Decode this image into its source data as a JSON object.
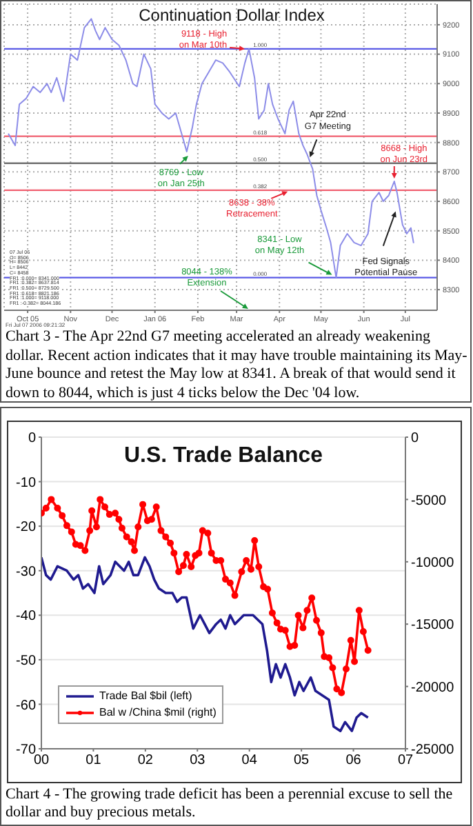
{
  "chart_data": [
    {
      "type": "line",
      "title": "Continuation Dollar Index",
      "x": [
        "2005-09-17",
        "2005-09-22",
        "2005-09-25",
        "2005-09-30",
        "2005-10-05",
        "2005-10-10",
        "2005-10-15",
        "2005-10-18",
        "2005-10-22",
        "2005-10-27",
        "2005-11-01",
        "2005-11-06",
        "2005-11-11",
        "2005-11-16",
        "2005-11-19",
        "2005-11-22",
        "2005-11-26",
        "2005-12-01",
        "2005-12-06",
        "2005-12-11",
        "2005-12-16",
        "2005-12-19",
        "2005-12-24",
        "2005-12-29",
        "2006-01-01",
        "2006-01-06",
        "2006-01-11",
        "2006-01-16",
        "2006-01-24",
        "2006-01-28",
        "2006-01-31",
        "2006-02-04",
        "2006-02-09",
        "2006-02-14",
        "2006-02-19",
        "2006-02-24",
        "2006-03-03",
        "2006-03-07",
        "2006-03-10",
        "2006-03-14",
        "2006-03-17",
        "2006-03-21",
        "2006-03-24",
        "2006-03-27",
        "2006-03-31",
        "2006-04-05",
        "2006-04-08",
        "2006-04-11",
        "2006-04-15",
        "2006-04-18",
        "2006-04-21",
        "2006-04-25",
        "2006-04-28",
        "2006-05-01",
        "2006-05-05",
        "2006-05-08",
        "2006-05-12",
        "2006-05-15",
        "2006-05-20",
        "2006-05-25",
        "2006-05-30",
        "2006-06-04",
        "2006-06-07",
        "2006-06-12",
        "2006-06-15",
        "2006-06-19",
        "2006-06-23",
        "2006-06-25",
        "2006-06-29",
        "2006-07-02",
        "2006-07-05",
        "2006-07-07"
      ],
      "series": [
        {
          "color": "#8c8ce8",
          "values": [
            8830,
            8790,
            8930,
            8950,
            8990,
            8970,
            9000,
            8970,
            9020,
            8940,
            9100,
            9080,
            9190,
            9220,
            9180,
            9150,
            9190,
            9150,
            9130,
            9080,
            9000,
            8990,
            9100,
            9050,
            8930,
            8900,
            8880,
            8900,
            8769,
            8850,
            8930,
            9000,
            9040,
            9080,
            9070,
            9040,
            8990,
            9070,
            9118,
            9020,
            8880,
            8910,
            9000,
            8930,
            8880,
            8830,
            8910,
            8940,
            8830,
            8790,
            8760,
            8710,
            8620,
            8570,
            8510,
            8460,
            8341,
            8450,
            8490,
            8460,
            8450,
            8490,
            8600,
            8630,
            8600,
            8620,
            8668,
            8630,
            8520,
            8490,
            8510,
            8458
          ]
        }
      ],
      "xlim": [
        "2005-09-14",
        "2006-07-24"
      ],
      "xticks": [
        {
          "value": "2005-10-01",
          "label": "Oct 05"
        },
        {
          "value": "2005-11-01",
          "label": "Nov"
        },
        {
          "value": "2005-12-01",
          "label": "Dec"
        },
        {
          "value": "2006-01-01",
          "label": "Jan 06"
        },
        {
          "value": "2006-02-01",
          "label": "Feb"
        },
        {
          "value": "2006-03-01",
          "label": "Mar"
        },
        {
          "value": "2006-04-01",
          "label": "Apr"
        },
        {
          "value": "2006-05-01",
          "label": "May"
        },
        {
          "value": "2006-06-01",
          "label": "Jun"
        },
        {
          "value": "2006-07-01",
          "label": "Jul"
        }
      ],
      "ylim": [
        8230,
        9270
      ],
      "yticks": [
        8300,
        8400,
        8500,
        8600,
        8700,
        8800,
        8900,
        9000,
        9100,
        9200
      ],
      "grid": true,
      "legend": false,
      "marker": "none",
      "line_style": "solid",
      "ref_lines": [
        {
          "axis": "y",
          "value": 9118,
          "color": "#5a5ae6"
        },
        {
          "axis": "y",
          "value": 8821.186,
          "color": "#f06070"
        },
        {
          "axis": "y",
          "value": 8729.5,
          "color": "#707070"
        },
        {
          "axis": "y",
          "value": 8637.814,
          "color": "#f06070"
        },
        {
          "axis": "y",
          "value": 8341,
          "color": "#5a5ae6"
        }
      ],
      "annotations": [
        {
          "text": "9118 - High on Mar 10th",
          "x": "2006-03-10",
          "y": 9118
        },
        {
          "text": "8769 - Low on Jan 25th",
          "x": "2006-01-25",
          "y": 8769
        },
        {
          "text": "Apr 22nd G7 Meeting",
          "x": "2006-04-22",
          "y": 8740
        },
        {
          "text": "8668 - High on Jun 23rd",
          "x": "2006-06-23",
          "y": 8668
        },
        {
          "text": "8638 - 38% Retracement",
          "x": "2006-04-09",
          "y": 8638
        },
        {
          "text": "8341 - Low on May 12th",
          "x": "2006-05-12",
          "y": 8341
        },
        {
          "text": "Fed Signals Potential Pause",
          "x": "2006-06-25",
          "y": 8580
        },
        "8044 - 138% Extension",
        "07 Jul 06",
        "O= 8506",
        "H= 8506",
        "L= 8442",
        "C= 8458",
        "FR1 :0.000= 8341.000",
        "FR1 :0.382= 8637.814",
        "FR1 :0.500= 8729.500",
        "FR1 :0.618= 8821.186",
        "FR1 :1.000= 9118.000",
        "FR1 :-0.382= 8044.186",
        "Fri Jul 07 2006 09:21:32",
        "Chart 3 - The Apr 22nd G7 meeting accelerated an already weakening dollar.  Recent action indicates that it may have trouble maintaining its May-June bounce and retest the May low at 8341.  A break of that would send it down to 8044, which is just 4 ticks below the Dec '04 low.",
        {
          "text": "1.000",
          "x": "2006-03-13",
          "y": 9118
        },
        {
          "text": "0.618",
          "x": "2006-03-13",
          "y": 8821.186
        },
        {
          "text": "0.500",
          "x": "2006-03-13",
          "y": 8729.5
        },
        {
          "text": "0.382",
          "x": "2006-03-13",
          "y": 8637.814
        },
        {
          "text": "0.000",
          "x": "2006-03-13",
          "y": 8341
        }
      ]
    },
    {
      "type": "line",
      "title": "U.S. Trade Balance",
      "series": [
        {
          "name": "Trade Bal $bil (left)",
          "color": "#1f1a8f",
          "marker": "none",
          "x": [
            2000,
            2000.09,
            2000.18,
            2000.31,
            2000.49,
            2000.62,
            2000.71,
            2000.8,
            2000.9,
            2001.02,
            2001.11,
            2001.19,
            2001.33,
            2001.42,
            2001.59,
            2001.68,
            2001.77,
            2001.86,
            2001.99,
            2002.08,
            2002.17,
            2002.26,
            2002.39,
            2002.52,
            2002.61,
            2002.7,
            2002.79,
            2002.92,
            2003.05,
            2003.14,
            2003.23,
            2003.36,
            2003.45,
            2003.54,
            2003.63,
            2003.72,
            2003.89,
            2004.07,
            2004.25,
            2004.34,
            2004.42,
            2004.51,
            2004.6,
            2004.69,
            2004.78,
            2004.87,
            2004.96,
            2005.04,
            2005.18,
            2005.27,
            2005.4,
            2005.53,
            2005.62,
            2005.75,
            2005.84,
            2005.97,
            2006.06,
            2006.15,
            2006.28
          ],
          "values": [
            -27,
            -31,
            -32,
            -29,
            -30,
            -32,
            -31,
            -34,
            -33,
            -35,
            -29,
            -33,
            -31,
            -28,
            -30,
            -28,
            -31,
            -31,
            -27,
            -29,
            -32,
            -34,
            -35,
            -35,
            -37,
            -36,
            -36,
            -43,
            -40,
            -42,
            -44,
            -42,
            -41,
            -43,
            -40,
            -42,
            -40,
            -40,
            -42,
            -48,
            -55,
            -51,
            -54,
            -51,
            -54,
            -58,
            -55,
            -57,
            -54,
            -57,
            -58,
            -59,
            -65,
            -66,
            -64,
            -66,
            -63,
            -62,
            -63
          ]
        },
        {
          "name": "Bal w /China $mil (right)",
          "color": "#ff0000",
          "marker": "circle",
          "axis": "y2",
          "x": [
            2000,
            2000.09,
            2000.19,
            2000.31,
            2000.4,
            2000.49,
            2000.58,
            2000.66,
            2000.75,
            2000.84,
            2000.93,
            2000.97,
            2001.06,
            2001.13,
            2001.22,
            2001.31,
            2001.42,
            2001.49,
            2001.55,
            2001.64,
            2001.73,
            2001.79,
            2001.86,
            2001.95,
            2002.04,
            2002.12,
            2002.21,
            2002.3,
            2002.39,
            2002.48,
            2002.55,
            2002.64,
            2002.73,
            2002.79,
            2002.88,
            2002.96,
            2003.03,
            2003.1,
            2003.2,
            2003.27,
            2003.36,
            2003.45,
            2003.54,
            2003.63,
            2003.72,
            2003.85,
            2003.94,
            2004.03,
            2004.1,
            2004.18,
            2004.27,
            2004.35,
            2004.44,
            2004.53,
            2004.6,
            2004.69,
            2004.78,
            2004.87,
            2004.94,
            2005.03,
            2005.11,
            2005.2,
            2005.29,
            2005.38,
            2005.44,
            2005.53,
            2005.6,
            2005.68,
            2005.77,
            2005.86,
            2005.95,
            2006.02,
            2006.11,
            2006.19,
            2006.28
          ],
          "values": [
            -6100,
            -5700,
            -5000,
            -5700,
            -6300,
            -7100,
            -7600,
            -8600,
            -8700,
            -9100,
            -7500,
            -5900,
            -7200,
            -5000,
            -5600,
            -6200,
            -6100,
            -6600,
            -7300,
            -8000,
            -8400,
            -9100,
            -7200,
            -5400,
            -6700,
            -6600,
            -5600,
            -7500,
            -8000,
            -8500,
            -9300,
            -10800,
            -10300,
            -9400,
            -10400,
            -9500,
            -9300,
            -7500,
            -7700,
            -9300,
            -9900,
            -9900,
            -11400,
            -11700,
            -12700,
            -10800,
            -9900,
            -10600,
            -8300,
            -10400,
            -12000,
            -12200,
            -14100,
            -14900,
            -15400,
            -15500,
            -16800,
            -16700,
            -14300,
            -15300,
            -13900,
            -12900,
            -14700,
            -15700,
            -17600,
            -17700,
            -18500,
            -20200,
            -20500,
            -18600,
            -16300,
            -18000,
            -13900,
            -15600,
            -17100
          ]
        }
      ],
      "xlim": [
        2000,
        2007
      ],
      "xticks": [
        {
          "value": 2000,
          "label": "00"
        },
        {
          "value": 2001,
          "label": "01"
        },
        {
          "value": 2002,
          "label": "02"
        },
        {
          "value": 2003,
          "label": "03"
        },
        {
          "value": 2004,
          "label": "04"
        },
        {
          "value": 2005,
          "label": "05"
        },
        {
          "value": 2006,
          "label": "06"
        },
        {
          "value": 2007,
          "label": "07"
        }
      ],
      "ylim": [
        -70,
        0
      ],
      "yticks": [
        0,
        -10,
        -20,
        -30,
        -40,
        -50,
        -60,
        -70
      ],
      "y2lim": [
        -25000,
        0
      ],
      "y2ticks": [
        0,
        -5000,
        -10000,
        -15000,
        -20000,
        -25000
      ],
      "grid": "y",
      "legend": "bottom left",
      "line_style": "solid",
      "annotations": [
        "Chart 4 - The growing trade deficit has been a perennial excuse to sell the dollar and buy precious metals."
      ]
    }
  ]
}
